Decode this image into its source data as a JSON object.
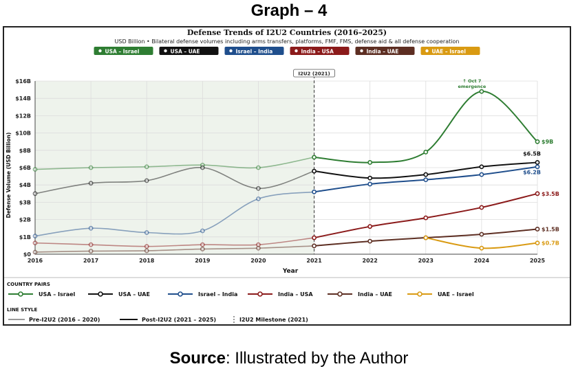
{
  "page": {
    "heading": "Graph – 4",
    "source_label": "Source",
    "source_text": ": Illustrated by the Author"
  },
  "chart_data": {
    "type": "line",
    "title": "Defense Trends of I2U2 Countries (2016–2025)",
    "subtitle": "USD Billion • Bilateral defense volumes including arms transfers, platforms, FMF, FMS, defense aid & all defense cooperation",
    "xlabel": "Year",
    "ylabel": "Defense Volume (USD Billion)",
    "x": [
      2016,
      2017,
      2018,
      2019,
      2020,
      2021,
      2022,
      2023,
      2024,
      2025
    ],
    "y_ticks": [
      0,
      1,
      2,
      3,
      4,
      5,
      6,
      7,
      8,
      9,
      10
    ],
    "y_tick_labels": [
      "$0",
      "$1B",
      "$2B",
      "$3B",
      "$4B",
      "$6B",
      "$8B",
      "$10B",
      "$12B",
      "$14B",
      "$16B"
    ],
    "ylim": [
      0,
      10
    ],
    "grid": true,
    "milestone": {
      "x": 2021,
      "label": "I2U2 (2021)"
    },
    "annotation": {
      "x": 2024,
      "line1": "↑ Oct 7",
      "line2": "emergence"
    },
    "series": [
      {
        "name": "USA – Israel",
        "color": "#2e7d32",
        "values": [
          4.9,
          5.0,
          5.05,
          5.15,
          5.0,
          5.6,
          5.3,
          5.9,
          9.4,
          6.5
        ],
        "end_label": "$9B"
      },
      {
        "name": "USA – UAE",
        "color": "#111111",
        "values": [
          3.5,
          4.1,
          4.25,
          5.0,
          3.8,
          4.8,
          4.4,
          4.6,
          5.05,
          5.3
        ],
        "end_label": "$6.5B"
      },
      {
        "name": "Israel – India",
        "color": "#1f4e8c",
        "values": [
          1.05,
          1.5,
          1.25,
          1.35,
          3.2,
          3.6,
          4.05,
          4.3,
          4.6,
          5.05
        ],
        "end_label": "$6.2B"
      },
      {
        "name": "India – USA",
        "color": "#8b1a1a",
        "values": [
          0.65,
          0.55,
          0.45,
          0.55,
          0.55,
          0.95,
          1.6,
          2.1,
          2.7,
          3.5
        ],
        "end_label": "$3.5B"
      },
      {
        "name": "India – UAE",
        "color": "#5d2e22",
        "values": [
          0.12,
          0.18,
          0.2,
          0.3,
          0.35,
          0.48,
          0.75,
          0.95,
          1.15,
          1.45
        ],
        "end_label": "$1.5B"
      },
      {
        "name": "UAE – Israel",
        "color": "#d99a12",
        "values": [
          null,
          null,
          null,
          null,
          null,
          null,
          null,
          0.95,
          0.35,
          0.65
        ],
        "end_label": "$0.7B"
      }
    ],
    "legend": {
      "country_pairs_title": "COUNTRY PAIRS",
      "line_style_title": "LINE STYLE",
      "line_styles": [
        "Pre-I2U2 (2016 – 2020)",
        "Post-I2U2 (2021 – 2025)",
        "I2U2 Milestone (2021)"
      ]
    }
  }
}
